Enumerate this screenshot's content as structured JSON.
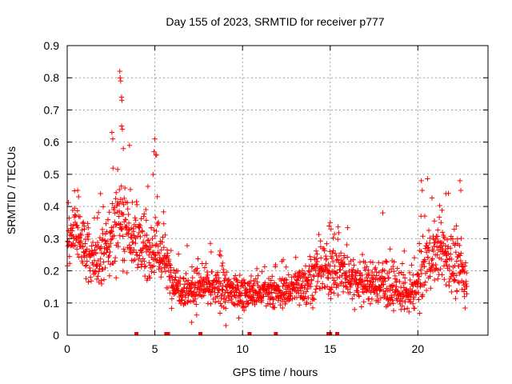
{
  "chart_data": {
    "type": "scatter",
    "title": "Day 155 of 2023, SRMTID for receiver p777",
    "xlabel": "GPS time / hours",
    "ylabel": "SRMTID / TECUs",
    "xlim": [
      0,
      24
    ],
    "ylim": [
      0,
      0.9
    ],
    "x_ticks": [
      "0",
      "5",
      "10",
      "15",
      "20"
    ],
    "x_tick_values": [
      0,
      5,
      10,
      15,
      20
    ],
    "y_ticks": [
      "0",
      "0.1",
      "0.2",
      "0.3",
      "0.4",
      "0.5",
      "0.6",
      "0.7",
      "0.8",
      "0.9"
    ],
    "y_tick_values": [
      0,
      0.1,
      0.2,
      0.3,
      0.4,
      0.5,
      0.6,
      0.7,
      0.8,
      0.9
    ],
    "grid": true,
    "marker": "plus",
    "color": "#ff0000",
    "envelope": {
      "description": "approximate typical SRMTID level over the day, used to reproduce the dense scatter",
      "x": [
        0,
        0.5,
        1,
        1.5,
        2,
        2.5,
        3,
        3.5,
        4,
        4.5,
        5,
        5.5,
        6,
        6.5,
        7,
        7.5,
        8,
        9,
        10,
        11,
        12,
        13,
        14,
        14.5,
        15,
        15.5,
        16,
        17,
        18,
        19,
        19.5,
        20,
        20.5,
        21,
        21.5,
        22,
        22.5,
        22.8
      ],
      "y": [
        0.28,
        0.33,
        0.26,
        0.22,
        0.24,
        0.3,
        0.38,
        0.33,
        0.28,
        0.26,
        0.28,
        0.24,
        0.17,
        0.15,
        0.14,
        0.15,
        0.15,
        0.14,
        0.13,
        0.13,
        0.13,
        0.15,
        0.18,
        0.19,
        0.21,
        0.2,
        0.18,
        0.16,
        0.16,
        0.13,
        0.12,
        0.16,
        0.24,
        0.25,
        0.26,
        0.22,
        0.2,
        0.14
      ],
      "spread": [
        0.08,
        0.08,
        0.07,
        0.06,
        0.08,
        0.1,
        0.12,
        0.09,
        0.08,
        0.07,
        0.1,
        0.07,
        0.05,
        0.05,
        0.05,
        0.05,
        0.05,
        0.05,
        0.04,
        0.04,
        0.04,
        0.05,
        0.06,
        0.06,
        0.07,
        0.07,
        0.06,
        0.05,
        0.06,
        0.05,
        0.05,
        0.06,
        0.09,
        0.08,
        0.09,
        0.08,
        0.08,
        0.05
      ]
    },
    "highlights": [
      {
        "x": 3.0,
        "y": 0.82
      },
      {
        "x": 3.02,
        "y": 0.8
      },
      {
        "x": 3.05,
        "y": 0.79
      },
      {
        "x": 3.1,
        "y": 0.74
      },
      {
        "x": 3.12,
        "y": 0.73
      },
      {
        "x": 3.1,
        "y": 0.65
      },
      {
        "x": 3.15,
        "y": 0.64
      },
      {
        "x": 2.55,
        "y": 0.63
      },
      {
        "x": 2.6,
        "y": 0.61
      },
      {
        "x": 5.0,
        "y": 0.61
      },
      {
        "x": 4.95,
        "y": 0.57
      },
      {
        "x": 5.05,
        "y": 0.56
      },
      {
        "x": 3.2,
        "y": 0.58
      },
      {
        "x": 3.55,
        "y": 0.59
      },
      {
        "x": 20.2,
        "y": 0.48
      },
      {
        "x": 20.25,
        "y": 0.45
      },
      {
        "x": 22.4,
        "y": 0.48
      },
      {
        "x": 22.45,
        "y": 0.45
      },
      {
        "x": 21.6,
        "y": 0.44
      },
      {
        "x": 18.0,
        "y": 0.38
      },
      {
        "x": 15.0,
        "y": 0.35
      },
      {
        "x": 15.05,
        "y": 0.33
      },
      {
        "x": 0.6,
        "y": 0.45
      },
      {
        "x": 0.65,
        "y": 0.43
      },
      {
        "x": 1.9,
        "y": 0.44
      },
      {
        "x": 9.05,
        "y": 0.03
      },
      {
        "x": 7.1,
        "y": 0.04
      }
    ],
    "zero_markers": [
      {
        "x": 3.95,
        "y": 0
      },
      {
        "x": 5.65,
        "y": 0
      },
      {
        "x": 5.75,
        "y": 0
      },
      {
        "x": 7.6,
        "y": 0
      },
      {
        "x": 10.4,
        "y": 0
      },
      {
        "x": 11.9,
        "y": 0
      },
      {
        "x": 14.9,
        "y": 0
      },
      {
        "x": 15.0,
        "y": 0
      },
      {
        "x": 15.4,
        "y": 0
      }
    ]
  }
}
